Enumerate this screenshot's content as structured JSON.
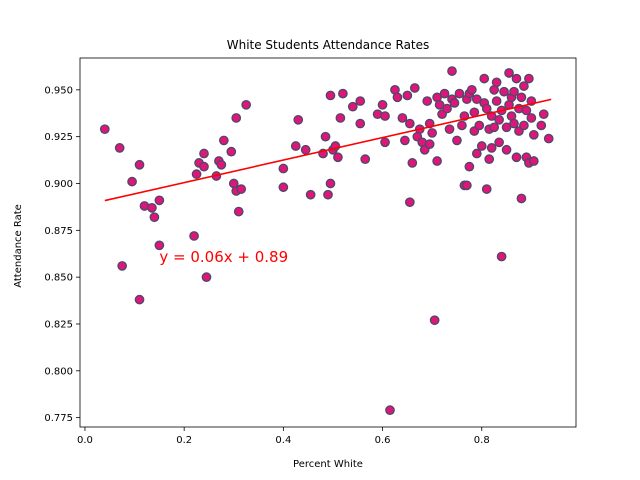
{
  "chart_data": {
    "type": "scatter",
    "title": "White Students Attendance Rates",
    "xlabel": "Percent White",
    "ylabel": "Attendance Rate",
    "xlim": [
      -0.01,
      0.99
    ],
    "ylim": [
      0.77,
      0.967
    ],
    "xticks": [
      0.0,
      0.2,
      0.4,
      0.6,
      0.8
    ],
    "xtick_labels": [
      "0.0",
      "0.2",
      "0.4",
      "0.6",
      "0.8"
    ],
    "yticks": [
      0.775,
      0.8,
      0.825,
      0.85,
      0.875,
      0.9,
      0.925,
      0.95
    ],
    "ytick_labels": [
      "0.775",
      "0.800",
      "0.825",
      "0.850",
      "0.875",
      "0.900",
      "0.925",
      "0.950"
    ],
    "grid": false,
    "colors": {
      "marker_fill": "#e0157a",
      "marker_edge": "#4a4a68",
      "regression": "#ff0000",
      "annotation": "#ff0000"
    },
    "regression": {
      "slope": 0.06,
      "intercept": 0.8885,
      "x_range": [
        0.04,
        0.94
      ]
    },
    "annotation": {
      "text": "y = 0.06x + 0.89",
      "x": 0.15,
      "y": 0.858
    },
    "points": [
      [
        0.04,
        0.929
      ],
      [
        0.07,
        0.919
      ],
      [
        0.075,
        0.856
      ],
      [
        0.095,
        0.901
      ],
      [
        0.11,
        0.838
      ],
      [
        0.11,
        0.91
      ],
      [
        0.12,
        0.888
      ],
      [
        0.135,
        0.887
      ],
      [
        0.14,
        0.882
      ],
      [
        0.15,
        0.891
      ],
      [
        0.15,
        0.867
      ],
      [
        0.22,
        0.872
      ],
      [
        0.225,
        0.905
      ],
      [
        0.23,
        0.911
      ],
      [
        0.24,
        0.909
      ],
      [
        0.24,
        0.916
      ],
      [
        0.245,
        0.85
      ],
      [
        0.265,
        0.904
      ],
      [
        0.27,
        0.912
      ],
      [
        0.275,
        0.91
      ],
      [
        0.28,
        0.923
      ],
      [
        0.295,
        0.917
      ],
      [
        0.3,
        0.9
      ],
      [
        0.305,
        0.896
      ],
      [
        0.305,
        0.935
      ],
      [
        0.31,
        0.885
      ],
      [
        0.315,
        0.897
      ],
      [
        0.325,
        0.942
      ],
      [
        0.4,
        0.898
      ],
      [
        0.4,
        0.908
      ],
      [
        0.425,
        0.92
      ],
      [
        0.43,
        0.934
      ],
      [
        0.445,
        0.918
      ],
      [
        0.455,
        0.894
      ],
      [
        0.48,
        0.916
      ],
      [
        0.485,
        0.925
      ],
      [
        0.49,
        0.894
      ],
      [
        0.495,
        0.9
      ],
      [
        0.495,
        0.947
      ],
      [
        0.5,
        0.918
      ],
      [
        0.505,
        0.92
      ],
      [
        0.51,
        0.914
      ],
      [
        0.515,
        0.935
      ],
      [
        0.52,
        0.948
      ],
      [
        0.54,
        0.941
      ],
      [
        0.555,
        0.944
      ],
      [
        0.555,
        0.932
      ],
      [
        0.565,
        0.913
      ],
      [
        0.59,
        0.937
      ],
      [
        0.6,
        0.942
      ],
      [
        0.605,
        0.922
      ],
      [
        0.605,
        0.936
      ],
      [
        0.615,
        0.779
      ],
      [
        0.625,
        0.95
      ],
      [
        0.63,
        0.946
      ],
      [
        0.64,
        0.935
      ],
      [
        0.645,
        0.923
      ],
      [
        0.65,
        0.947
      ],
      [
        0.655,
        0.89
      ],
      [
        0.655,
        0.932
      ],
      [
        0.66,
        0.911
      ],
      [
        0.665,
        0.951
      ],
      [
        0.67,
        0.925
      ],
      [
        0.675,
        0.929
      ],
      [
        0.68,
        0.922
      ],
      [
        0.685,
        0.918
      ],
      [
        0.69,
        0.944
      ],
      [
        0.695,
        0.921
      ],
      [
        0.695,
        0.932
      ],
      [
        0.7,
        0.927
      ],
      [
        0.705,
        0.827
      ],
      [
        0.71,
        0.912
      ],
      [
        0.71,
        0.946
      ],
      [
        0.715,
        0.942
      ],
      [
        0.72,
        0.937
      ],
      [
        0.725,
        0.948
      ],
      [
        0.73,
        0.94
      ],
      [
        0.735,
        0.929
      ],
      [
        0.74,
        0.96
      ],
      [
        0.74,
        0.945
      ],
      [
        0.745,
        0.943
      ],
      [
        0.75,
        0.923
      ],
      [
        0.755,
        0.948
      ],
      [
        0.76,
        0.931
      ],
      [
        0.765,
        0.899
      ],
      [
        0.765,
        0.936
      ],
      [
        0.77,
        0.945
      ],
      [
        0.77,
        0.899
      ],
      [
        0.775,
        0.948
      ],
      [
        0.775,
        0.909
      ],
      [
        0.78,
        0.95
      ],
      [
        0.785,
        0.928
      ],
      [
        0.785,
        0.938
      ],
      [
        0.79,
        0.916
      ],
      [
        0.79,
        0.945
      ],
      [
        0.795,
        0.931
      ],
      [
        0.8,
        0.92
      ],
      [
        0.805,
        0.943
      ],
      [
        0.805,
        0.956
      ],
      [
        0.81,
        0.897
      ],
      [
        0.81,
        0.94
      ],
      [
        0.815,
        0.929
      ],
      [
        0.815,
        0.913
      ],
      [
        0.82,
        0.936
      ],
      [
        0.82,
        0.919
      ],
      [
        0.825,
        0.95
      ],
      [
        0.825,
        0.93
      ],
      [
        0.83,
        0.954
      ],
      [
        0.83,
        0.944
      ],
      [
        0.835,
        0.934
      ],
      [
        0.835,
        0.922
      ],
      [
        0.84,
        0.861
      ],
      [
        0.84,
        0.939
      ],
      [
        0.845,
        0.949
      ],
      [
        0.85,
        0.93
      ],
      [
        0.85,
        0.918
      ],
      [
        0.855,
        0.959
      ],
      [
        0.855,
        0.942
      ],
      [
        0.86,
        0.946
      ],
      [
        0.86,
        0.936
      ],
      [
        0.865,
        0.932
      ],
      [
        0.865,
        0.949
      ],
      [
        0.87,
        0.914
      ],
      [
        0.87,
        0.956
      ],
      [
        0.875,
        0.94
      ],
      [
        0.875,
        0.928
      ],
      [
        0.88,
        0.892
      ],
      [
        0.88,
        0.946
      ],
      [
        0.885,
        0.931
      ],
      [
        0.885,
        0.952
      ],
      [
        0.89,
        0.939
      ],
      [
        0.89,
        0.914
      ],
      [
        0.895,
        0.956
      ],
      [
        0.895,
        0.911
      ],
      [
        0.9,
        0.944
      ],
      [
        0.9,
        0.935
      ],
      [
        0.905,
        0.912
      ],
      [
        0.905,
        0.926
      ],
      [
        0.92,
        0.931
      ],
      [
        0.925,
        0.937
      ],
      [
        0.935,
        0.924
      ]
    ]
  }
}
